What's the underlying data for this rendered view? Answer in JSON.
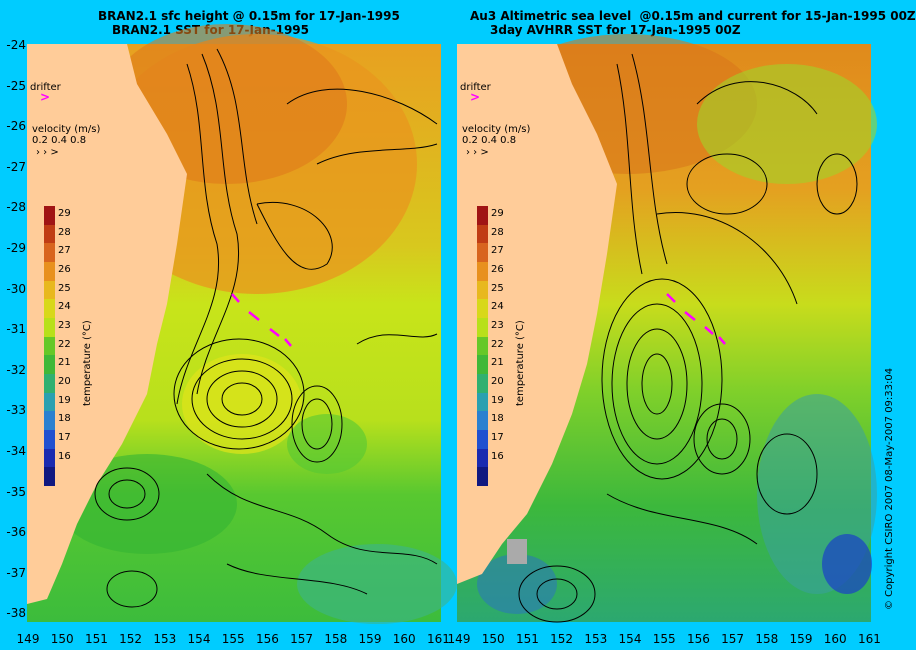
{
  "left_panel": {
    "title_line1": "BRAN2.1 sfc height @ 0.15m for 17-Jan-1995",
    "title_line2": "BRAN2.1 SST for 17-Jan-1995"
  },
  "right_panel": {
    "title_line1": "Au3 Altimetric sea level  @0.15m and current for 15-Jan-1995 00Z",
    "title_line2": "3day AVHRR SST for 17-Jan-1995 00Z"
  },
  "drifter_label": "drifter",
  "velocity_label": "velocity (m/s)",
  "velocity_scale": "0.2 0.4 0.8",
  "colorbar": {
    "label": "temperature (°C)",
    "ticks": [
      "29",
      "28",
      "27",
      "26",
      "25",
      "24",
      "23",
      "22",
      "21",
      "20",
      "19",
      "18",
      "17",
      "16"
    ]
  },
  "y_axis_ticks": [
    "-24",
    "-25",
    "-26",
    "-27",
    "-28",
    "-29",
    "-30",
    "-31",
    "-32",
    "-33",
    "-34",
    "-35",
    "-36",
    "-37",
    "-38"
  ],
  "x_axis_ticks_left": [
    "149",
    "150",
    "151",
    "152",
    "153",
    "154",
    "155",
    "156",
    "157",
    "158",
    "159",
    "160",
    "161"
  ],
  "x_axis_ticks_right": [
    "149",
    "150",
    "151",
    "152",
    "153",
    "154",
    "155",
    "156",
    "157",
    "158",
    "159",
    "160",
    "161"
  ],
  "copyright": "© Copyright CSIRO 2007  08-May-2007 09:33:04",
  "colors": {
    "background": "#00ccff",
    "land": "#ffcc99",
    "warm": "#e68a1e",
    "mid": "#cce61a",
    "cool": "#33b833",
    "drifter": "#ff00ff"
  }
}
